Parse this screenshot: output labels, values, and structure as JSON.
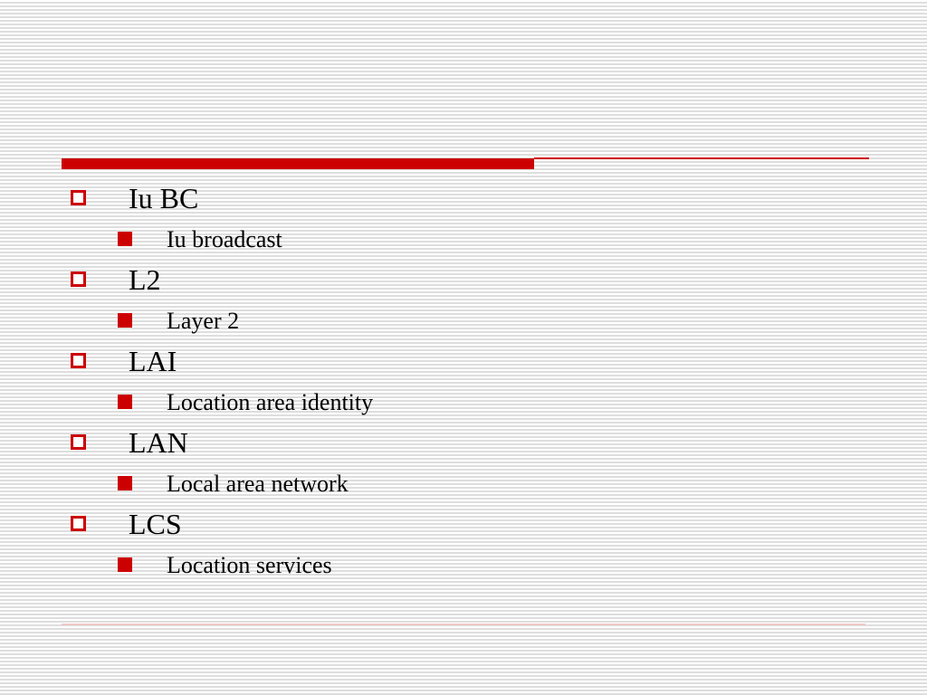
{
  "accent_color": "#cc0000",
  "items": [
    {
      "term": "Iu BC",
      "definition": "Iu broadcast"
    },
    {
      "term": "L2",
      "definition": "Layer 2"
    },
    {
      "term": "LAI",
      "definition": "Location area identity"
    },
    {
      "term": "LAN",
      "definition": "Local area network"
    },
    {
      "term": "LCS",
      "definition": "Location services"
    }
  ]
}
